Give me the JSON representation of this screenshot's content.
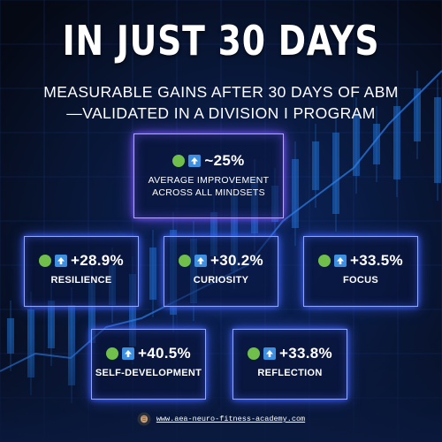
{
  "header": {
    "headline": "IN JUST 30 DAYS",
    "subtitle_line1": "MEASURABLE GAINS AFTER 30 DAYS OF ABM",
    "subtitle_line2": "—VALIDATED IN A DIVISION I PROGRAM"
  },
  "summary": {
    "value": "~25%",
    "label_line1": "AVERAGE IMPROVEMENT",
    "label_line2": "ACROSS ALL MINDSETS"
  },
  "metrics": [
    {
      "value": "+28.9%",
      "label": "RESILIENCE"
    },
    {
      "value": "+30.2%",
      "label": "CURIOSITY"
    },
    {
      "value": "+33.5%",
      "label": "FOCUS"
    },
    {
      "value": "+40.5%",
      "label": "SELF-DEVELOPMENT"
    },
    {
      "value": "+33.8%",
      "label": "REFLECTION"
    }
  ],
  "icons": {
    "status": "green-circle-icon",
    "trend": "up-arrow-icon"
  },
  "footer": {
    "url": "www.aea-neuro-fitness-academy.com",
    "icon": "brain-logo-icon"
  },
  "colors": {
    "background": "#060b1a",
    "box_border": "#8fa8ff",
    "glow": "#3a5dff",
    "green": "#6fbf4a",
    "arrow_blue": "#3d8fe0",
    "chart_blue": "#1f6fd0"
  }
}
